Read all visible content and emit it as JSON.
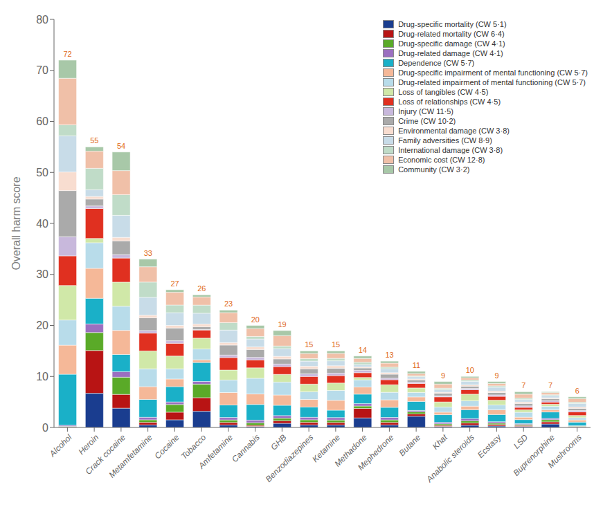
{
  "chart_data": {
    "type": "bar",
    "stacked": true,
    "ylabel": "Overall harm score",
    "categories": [
      "Alcohol",
      "Heroin",
      "Crack cocaine",
      "Metamfetamine",
      "Cocaine",
      "Tobacco",
      "Amfetamine",
      "Cannabis",
      "GHB",
      "Benzodiazepines",
      "Ketamine",
      "Methadone",
      "Mephedrone",
      "Butane",
      "Khat",
      "Anabolic steroids",
      "Ecstasy",
      "LSD",
      "Buprenorphine",
      "Mushrooms"
    ],
    "series": [
      {
        "name": "Drug-specific mortality (CW 5·1)",
        "color": "#1a3d8f",
        "values": [
          0,
          6.7073,
          3.78,
          0.5,
          1.5,
          3.1837,
          0.4894,
          0.2051,
          0.8085,
          0.5,
          0.4839,
          1.8667,
          0.4924,
          2.2,
          0.2,
          0.4348,
          0.28125,
          0.1918,
          0.6747,
          0.087
        ]
      },
      {
        "name": "Drug-related mortality (CW 6·4)",
        "color": "#b81414",
        "values": [
          0.1075,
          8.3841,
          2.7,
          0.5,
          1.5,
          2.6531,
          0.4894,
          0.2051,
          0.5053,
          0.5,
          0.4839,
          1.8667,
          0.4924,
          0.44,
          0.2,
          0.4348,
          0.28125,
          0.1918,
          0.4217,
          0.087
        ]
      },
      {
        "name": "Drug-specific damage (CW 4·1)",
        "color": "#5aaa28",
        "values": [
          0.1075,
          3.5213,
          3.375,
          0.5,
          1.5,
          2.6531,
          0.4894,
          0.5128,
          0.5053,
          0.5,
          0.4839,
          0.4667,
          0.4924,
          0.44,
          0.3,
          0.4348,
          0.28125,
          0.1918,
          0.4217,
          0.087
        ]
      },
      {
        "name": "Drug-related damage (CW 4·1)",
        "color": "#9b6fc0",
        "values": [
          0.2149,
          1.6768,
          1.08,
          0.5,
          0.5,
          0.5306,
          0.4894,
          0.5128,
          0.5053,
          0.5,
          0.4839,
          0.4667,
          0.4924,
          0.264,
          0.3,
          0.4348,
          0.28125,
          0.1918,
          0.253,
          0.087
        ]
      },
      {
        "name": "Dependence (CW 5·7)",
        "color": "#1ab0c8",
        "values": [
          9.994,
          5.0305,
          3.375,
          3.5,
          3,
          3.7143,
          2.4468,
          3.0769,
          2.0213,
          2,
          1.4516,
          1.8667,
          1.9697,
          1.76,
          1.5,
          1.7391,
          1.40625,
          0.7671,
          1.2651,
          0.6957
        ]
      },
      {
        "name": "Drug-specific impairment of mental functioning (CW 5·7)",
        "color": "#f5b898",
        "values": [
          5.6955,
          5.8689,
          4.725,
          2.5,
          1.5,
          0.5306,
          2.4468,
          2.0513,
          2.0213,
          1.5,
          1.9355,
          1.4,
          1.4773,
          0.88,
          0.5,
          0.6957,
          0.9375,
          0.4795,
          0.4217,
          0.4348
        ]
      },
      {
        "name": "Drug-related impairment of mental functioning (CW 5·7)",
        "color": "#b8dcea",
        "values": [
          4.9433,
          5.0305,
          4.725,
          3.5,
          2,
          2.1224,
          2.4468,
          3.0769,
          2.5266,
          1.5,
          1.9355,
          1.4,
          1.4773,
          0.88,
          1,
          1.0435,
          0.9375,
          0.9589,
          0.6747,
          0.4348
        ]
      },
      {
        "name": "Loss of tangibles (CW 4·5)",
        "color": "#d0e8a8",
        "values": [
          6.7701,
          0.8384,
          4.725,
          3.5,
          2.5,
          2.1224,
          1.9574,
          2.0513,
          1.516,
          1.5,
          1.4516,
          0.4667,
          1.4773,
          0.88,
          1,
          1.3043,
          0.9375,
          0.4795,
          0.4217,
          0.4348
        ]
      },
      {
        "name": "Loss of relationships (CW 4·5)",
        "color": "#e03020",
        "values": [
          5.803,
          5.8689,
          4.725,
          3.5,
          2.5,
          1.5918,
          2.4468,
          1.5385,
          1.516,
          1.5,
          1.4516,
          0.9333,
          0.9848,
          0.88,
          1,
          0.8696,
          0.75,
          0.4795,
          0.4217,
          0.6957
        ]
      },
      {
        "name": "Injury (CW 11·5)",
        "color": "#c8b8dc",
        "values": [
          3.7612,
          0.503,
          0.675,
          0.5,
          0.5,
          0.1061,
          0.4894,
          0.5128,
          0.5053,
          0.5,
          0.4839,
          0.4667,
          0.2955,
          0.264,
          0.2,
          0.2609,
          0.28125,
          0.2877,
          0.253,
          0.2609
        ]
      },
      {
        "name": "Crime (CW 10·2)",
        "color": "#aaaaaa",
        "values": [
          9.0269,
          1.3415,
          2.7,
          2.5,
          2.5,
          0.5306,
          1.9574,
          1.5385,
          1.0106,
          1,
          0.9677,
          0.4667,
          0.7879,
          0.44,
          0.5,
          0.4348,
          0.46875,
          0.4795,
          0.4217,
          0.4348
        ]
      },
      {
        "name": "Environmental damage (CW 3·8)",
        "color": "#f8ddd0",
        "values": [
          3.6537,
          0.503,
          0.675,
          0.5,
          0.5,
          0.5306,
          0.4894,
          0.5128,
          0.5053,
          0.5,
          0.4839,
          0.1867,
          0.2955,
          0.176,
          0.2,
          0.2609,
          0.28125,
          0.2877,
          0.1687,
          0.2609
        ]
      },
      {
        "name": "Family adversities (CW 8·9)",
        "color": "#c8dce8",
        "values": [
          7.0925,
          1.3415,
          4.32,
          3.5,
          2.5,
          2.1224,
          2.4468,
          1.5385,
          1.516,
          1,
          0.9677,
          0.4667,
          0.7879,
          0.44,
          0.5,
          0.6957,
          0.75,
          0.4795,
          0.4217,
          0.6957
        ]
      },
      {
        "name": "International damage (CW 3·8)",
        "color": "#c0dcc8",
        "values": [
          2.1493,
          4.1921,
          4.05,
          3,
          1.5,
          1.5918,
          1.4681,
          0.5128,
          0.5053,
          0.5,
          0.4839,
          0.4667,
          0.2955,
          0.176,
          0.3,
          0.2609,
          0.28125,
          0.2877,
          0.1687,
          0.2609
        ]
      },
      {
        "name": "Economic cost (CW 12·8)",
        "color": "#f0c0a8",
        "values": [
          9.1343,
          3.3537,
          4.725,
          3,
          2.5,
          1.5918,
          1.9574,
          1.5385,
          2.0213,
          1,
          0.9677,
          0.7467,
          0.7879,
          0.44,
          0.8,
          0.4348,
          0.46875,
          0.7671,
          0.4217,
          0.6957
        ]
      },
      {
        "name": "Community (CW 3·2)",
        "color": "#a8c8a8",
        "values": [
          3.5463,
          0.8384,
          3.645,
          1.5,
          0.5,
          0.4245,
          0.4894,
          0.6154,
          1.0106,
          0.5,
          0.4839,
          0.4667,
          0.3939,
          0.44,
          0.5,
          0.2609,
          0.375,
          0.4795,
          0.1687,
          0.3478
        ]
      }
    ],
    "totals": {
      "values": [
        72,
        55,
        54,
        33,
        27,
        26,
        23,
        20,
        19,
        15,
        15,
        14,
        13,
        11,
        9,
        10,
        9,
        7,
        7,
        6
      ],
      "color": "#e06820"
    },
    "ylim": [
      0,
      80
    ],
    "yticks": [
      0,
      10,
      20,
      30,
      40,
      50,
      60,
      70,
      80
    ],
    "legend": "upper right"
  }
}
